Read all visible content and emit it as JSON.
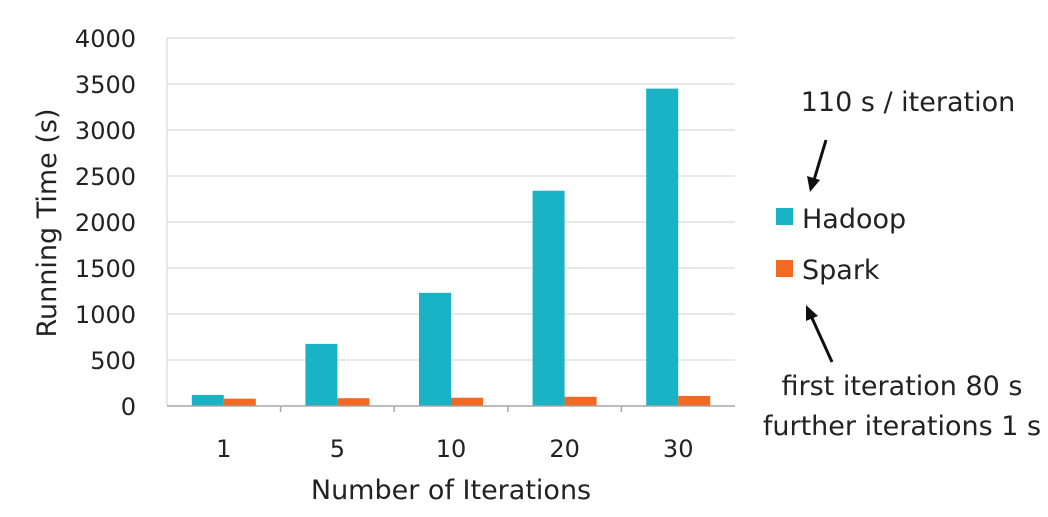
{
  "chart_data": {
    "type": "bar",
    "categories": [
      "1",
      "5",
      "10",
      "20",
      "30"
    ],
    "series": [
      {
        "name": "Hadoop",
        "color": "#1ab3c6",
        "values": [
          120,
          675,
          1230,
          2340,
          3450
        ]
      },
      {
        "name": "Spark",
        "color": "#f26a21",
        "values": [
          80,
          85,
          90,
          100,
          110
        ]
      }
    ],
    "xlabel": "Number of Iterations",
    "ylabel": "Running Time (s)",
    "ylim": [
      0,
      4000
    ],
    "yticks": [
      "0",
      "500",
      "1000",
      "1500",
      "2000",
      "2500",
      "3000",
      "3500",
      "4000"
    ],
    "grid": true,
    "legend_position": "right",
    "annotations": {
      "hadoop": "110 s / iteration",
      "spark_line1": "first iteration 80 s",
      "spark_line2": "further iterations 1 s"
    }
  }
}
